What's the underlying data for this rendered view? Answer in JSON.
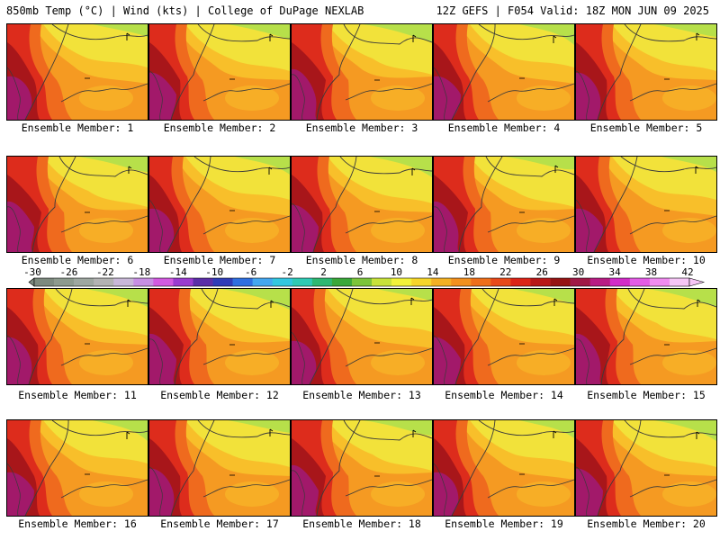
{
  "header": {
    "left": "850mb Temp (°C) | Wind (kts) | College of DuPage NEXLAB",
    "right": "12Z GEFS | F054 Valid: 18Z MON JUN 09 2025"
  },
  "members": [
    "Ensemble Member: 1",
    "Ensemble Member: 2",
    "Ensemble Member: 3",
    "Ensemble Member: 4",
    "Ensemble Member: 5",
    "Ensemble Member: 6",
    "Ensemble Member: 7",
    "Ensemble Member: 8",
    "Ensemble Member: 9",
    "Ensemble Member: 10",
    "Ensemble Member: 11",
    "Ensemble Member: 12",
    "Ensemble Member: 13",
    "Ensemble Member: 14",
    "Ensemble Member: 15",
    "Ensemble Member: 16",
    "Ensemble Member: 17",
    "Ensemble Member: 18",
    "Ensemble Member: 19",
    "Ensemble Member: 20"
  ],
  "colorbar": {
    "labels": [
      "-30",
      "-26",
      "-22",
      "-18",
      "-14",
      "-10",
      "-6",
      "-2",
      "2",
      "6",
      "10",
      "14",
      "18",
      "22",
      "26",
      "30",
      "34",
      "38",
      "42"
    ],
    "colors": [
      "#7d8a7f",
      "#8d9a8e",
      "#9ea7a0",
      "#b3b3b3",
      "#c9b8d8",
      "#c78fe3",
      "#d25ae0",
      "#9a3bd0",
      "#5b2ea8",
      "#2f3cb8",
      "#2f6fe0",
      "#44a7f0",
      "#33c7e0",
      "#2fcab4",
      "#2eb872",
      "#3aa83a",
      "#7cc43a",
      "#c8e23a",
      "#f2f23a",
      "#f6d52a",
      "#f3b023",
      "#f2901e",
      "#ee6e1a",
      "#e8491a",
      "#dc2418",
      "#b81818",
      "#961414",
      "#a01846",
      "#b81c84",
      "#d22cc8",
      "#e45ce6",
      "#f08cf0",
      "#f6c6f6"
    ]
  },
  "palette": {
    "dark_magenta": "#a2196a",
    "dark_red": "#a8161a",
    "red": "#dd2c1c",
    "orange_red": "#ef6a1e",
    "orange": "#f59a22",
    "yellow_orange": "#f8bf2a",
    "yellow": "#f2e23a",
    "light_green": "#b7e04a",
    "contour": "#3a3a3a"
  }
}
